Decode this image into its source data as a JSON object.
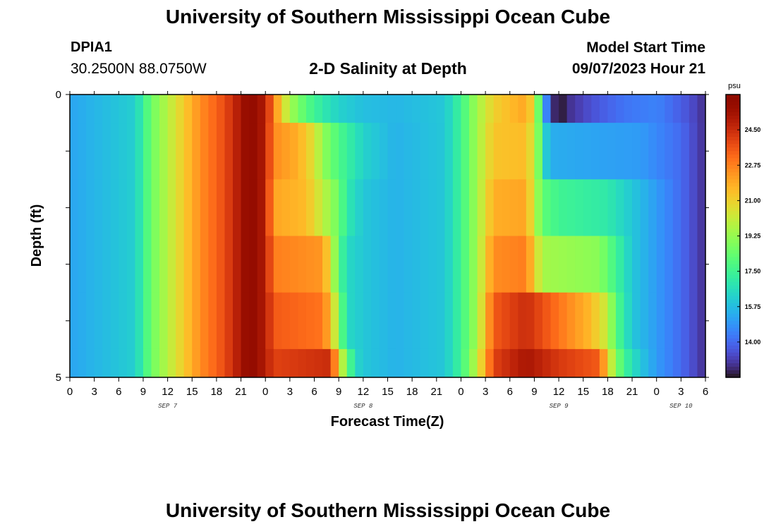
{
  "header": {
    "title": "University of Southern Mississippi Ocean Cube",
    "station_id": "DPIA1",
    "station_coords": "30.2500N  88.0750W",
    "chart_title": "2-D Salinity at Depth",
    "model_label": "Model Start Time",
    "model_time": "09/07/2023 Hour 21"
  },
  "footer": {
    "title": "University of Southern Mississippi Ocean Cube"
  },
  "chart_data": {
    "type": "heatmap",
    "title": "2-D Salinity at Depth",
    "xlabel": "Forecast Time(Z)",
    "ylabel": "Depth (ft)",
    "x_hours": [
      0,
      78
    ],
    "y_range": [
      0,
      5
    ],
    "x_tick_labels": [
      "0",
      "3",
      "6",
      "9",
      "12",
      "15",
      "18",
      "21",
      "0",
      "3",
      "6",
      "9",
      "12",
      "15",
      "18",
      "21",
      "0",
      "3",
      "6",
      "9",
      "12",
      "15",
      "18",
      "21",
      "0",
      "3",
      "6"
    ],
    "y_tick_labels": [
      "0",
      "5"
    ],
    "day_labels": [
      {
        "hour": 12,
        "label": "SEP 7"
      },
      {
        "hour": 36,
        "label": "SEP 8"
      },
      {
        "hour": 60,
        "label": "SEP 9"
      },
      {
        "hour": 75,
        "label": "SEP 10"
      }
    ],
    "colorbar": {
      "unit": "psu",
      "min": 12.25,
      "max": 26.25,
      "tick_values": [
        14.0,
        15.75,
        17.5,
        19.25,
        21.0,
        22.75,
        24.5
      ],
      "tick_labels": [
        "14.00",
        "15.75",
        "17.50",
        "19.25",
        "21.00",
        "22.75",
        "24.50"
      ]
    },
    "depth_layers": [
      {
        "depth": "0-0.5",
        "keyframes": [
          [
            0,
            15.2
          ],
          [
            8,
            16.2
          ],
          [
            10,
            18.5
          ],
          [
            13,
            20.5
          ],
          [
            16,
            22.5
          ],
          [
            19,
            23.8
          ],
          [
            21,
            25.2
          ],
          [
            22,
            26.0
          ],
          [
            24,
            25.0
          ],
          [
            25,
            22.8
          ],
          [
            26,
            21.0
          ],
          [
            27,
            19.5
          ],
          [
            29,
            18.0
          ],
          [
            31,
            17.0
          ],
          [
            33,
            16.3
          ],
          [
            36,
            15.8
          ],
          [
            40,
            15.6
          ],
          [
            46,
            16.0
          ],
          [
            48,
            17.5
          ],
          [
            50,
            19.5
          ],
          [
            52,
            21.0
          ],
          [
            56,
            22.0
          ],
          [
            57,
            20.5
          ],
          [
            57.5,
            18.5
          ],
          [
            58,
            16.5
          ],
          [
            58.5,
            14.5
          ],
          [
            59,
            13.0
          ],
          [
            59.7,
            12.5
          ],
          [
            60.3,
            12.3
          ],
          [
            61,
            12.8
          ],
          [
            64,
            13.5
          ],
          [
            68,
            14.2
          ],
          [
            72,
            14.5
          ],
          [
            76,
            13.5
          ],
          [
            78,
            12.8
          ]
        ]
      },
      {
        "depth": "0.5-1.5",
        "keyframes": [
          [
            0,
            15.2
          ],
          [
            8,
            16.2
          ],
          [
            10,
            18.5
          ],
          [
            13,
            20.5
          ],
          [
            16,
            22.5
          ],
          [
            19,
            23.8
          ],
          [
            21,
            25.2
          ],
          [
            22,
            26.0
          ],
          [
            24,
            25.0
          ],
          [
            25,
            22.5
          ],
          [
            28,
            21.8
          ],
          [
            30,
            20.5
          ],
          [
            31,
            19.2
          ],
          [
            33,
            17.8
          ],
          [
            36,
            16.3
          ],
          [
            40,
            15.5
          ],
          [
            46,
            16.0
          ],
          [
            48,
            17.5
          ],
          [
            50,
            19.5
          ],
          [
            52,
            21.3
          ],
          [
            56,
            21.5
          ],
          [
            57,
            20.0
          ],
          [
            58,
            17.5
          ],
          [
            58.5,
            16.0
          ],
          [
            59,
            15.4
          ],
          [
            64,
            15.2
          ],
          [
            70,
            15.0
          ],
          [
            75,
            14.0
          ],
          [
            78,
            12.8
          ]
        ]
      },
      {
        "depth": "1.5-2.5",
        "keyframes": [
          [
            0,
            15.2
          ],
          [
            8,
            16.2
          ],
          [
            10,
            18.5
          ],
          [
            13,
            20.5
          ],
          [
            16,
            22.5
          ],
          [
            19,
            23.8
          ],
          [
            21,
            25.2
          ],
          [
            22,
            26.0
          ],
          [
            24,
            25.0
          ],
          [
            25,
            22.0
          ],
          [
            29,
            21.5
          ],
          [
            31,
            20.0
          ],
          [
            33,
            18.5
          ],
          [
            34,
            17.0
          ],
          [
            36,
            16.0
          ],
          [
            40,
            15.5
          ],
          [
            46,
            16.0
          ],
          [
            48,
            17.5
          ],
          [
            50,
            19.5
          ],
          [
            52,
            21.8
          ],
          [
            56,
            22.0
          ],
          [
            57,
            20.0
          ],
          [
            58,
            18.2
          ],
          [
            60,
            17.5
          ],
          [
            66,
            17.0
          ],
          [
            69,
            16.0
          ],
          [
            72,
            15.0
          ],
          [
            75,
            14.0
          ],
          [
            78,
            12.8
          ]
        ]
      },
      {
        "depth": "2.5-3.5",
        "keyframes": [
          [
            0,
            15.2
          ],
          [
            8,
            16.2
          ],
          [
            10,
            18.5
          ],
          [
            13,
            20.5
          ],
          [
            16,
            22.5
          ],
          [
            19,
            23.8
          ],
          [
            21,
            25.2
          ],
          [
            22,
            26.0
          ],
          [
            24,
            25.0
          ],
          [
            25,
            22.8
          ],
          [
            31,
            22.3
          ],
          [
            32,
            20.5
          ],
          [
            33,
            18.0
          ],
          [
            34,
            16.5
          ],
          [
            36,
            16.0
          ],
          [
            40,
            15.5
          ],
          [
            46,
            16.0
          ],
          [
            48,
            17.5
          ],
          [
            50,
            19.5
          ],
          [
            52,
            22.5
          ],
          [
            56,
            22.8
          ],
          [
            57,
            21.0
          ],
          [
            58,
            19.5
          ],
          [
            65,
            19.0
          ],
          [
            67,
            17.5
          ],
          [
            69,
            16.0
          ],
          [
            72,
            15.0
          ],
          [
            75,
            14.0
          ],
          [
            78,
            12.8
          ]
        ]
      },
      {
        "depth": "3.5-4.5",
        "keyframes": [
          [
            0,
            15.2
          ],
          [
            8,
            16.2
          ],
          [
            10,
            18.5
          ],
          [
            13,
            20.5
          ],
          [
            16,
            22.5
          ],
          [
            19,
            23.8
          ],
          [
            21,
            25.2
          ],
          [
            22,
            26.0
          ],
          [
            24,
            25.0
          ],
          [
            25,
            23.5
          ],
          [
            31,
            23.0
          ],
          [
            32,
            21.5
          ],
          [
            33,
            19.0
          ],
          [
            34,
            16.5
          ],
          [
            36,
            16.0
          ],
          [
            40,
            15.5
          ],
          [
            46,
            16.0
          ],
          [
            48,
            17.5
          ],
          [
            50,
            19.5
          ],
          [
            52,
            23.5
          ],
          [
            56,
            24.5
          ],
          [
            60,
            23.0
          ],
          [
            64,
            21.5
          ],
          [
            66,
            20.0
          ],
          [
            67,
            18.0
          ],
          [
            69,
            16.0
          ],
          [
            72,
            15.0
          ],
          [
            75,
            14.0
          ],
          [
            78,
            12.8
          ]
        ]
      },
      {
        "depth": "4.5-5",
        "keyframes": [
          [
            0,
            15.2
          ],
          [
            8,
            16.2
          ],
          [
            10,
            18.5
          ],
          [
            13,
            20.5
          ],
          [
            16,
            22.5
          ],
          [
            19,
            23.8
          ],
          [
            21,
            25.2
          ],
          [
            22,
            26.0
          ],
          [
            24,
            25.0
          ],
          [
            25,
            24.0
          ],
          [
            32,
            24.5
          ],
          [
            33,
            21.0
          ],
          [
            34,
            18.5
          ],
          [
            35,
            16.5
          ],
          [
            36,
            16.0
          ],
          [
            40,
            15.5
          ],
          [
            46,
            16.0
          ],
          [
            48,
            17.5
          ],
          [
            50,
            20.0
          ],
          [
            52,
            24.0
          ],
          [
            56,
            25.2
          ],
          [
            60,
            24.2
          ],
          [
            65,
            23.5
          ],
          [
            66,
            21.0
          ],
          [
            67,
            19.0
          ],
          [
            68,
            17.5
          ],
          [
            70,
            16.0
          ],
          [
            72,
            15.0
          ],
          [
            75,
            14.0
          ],
          [
            78,
            12.8
          ]
        ]
      }
    ]
  }
}
